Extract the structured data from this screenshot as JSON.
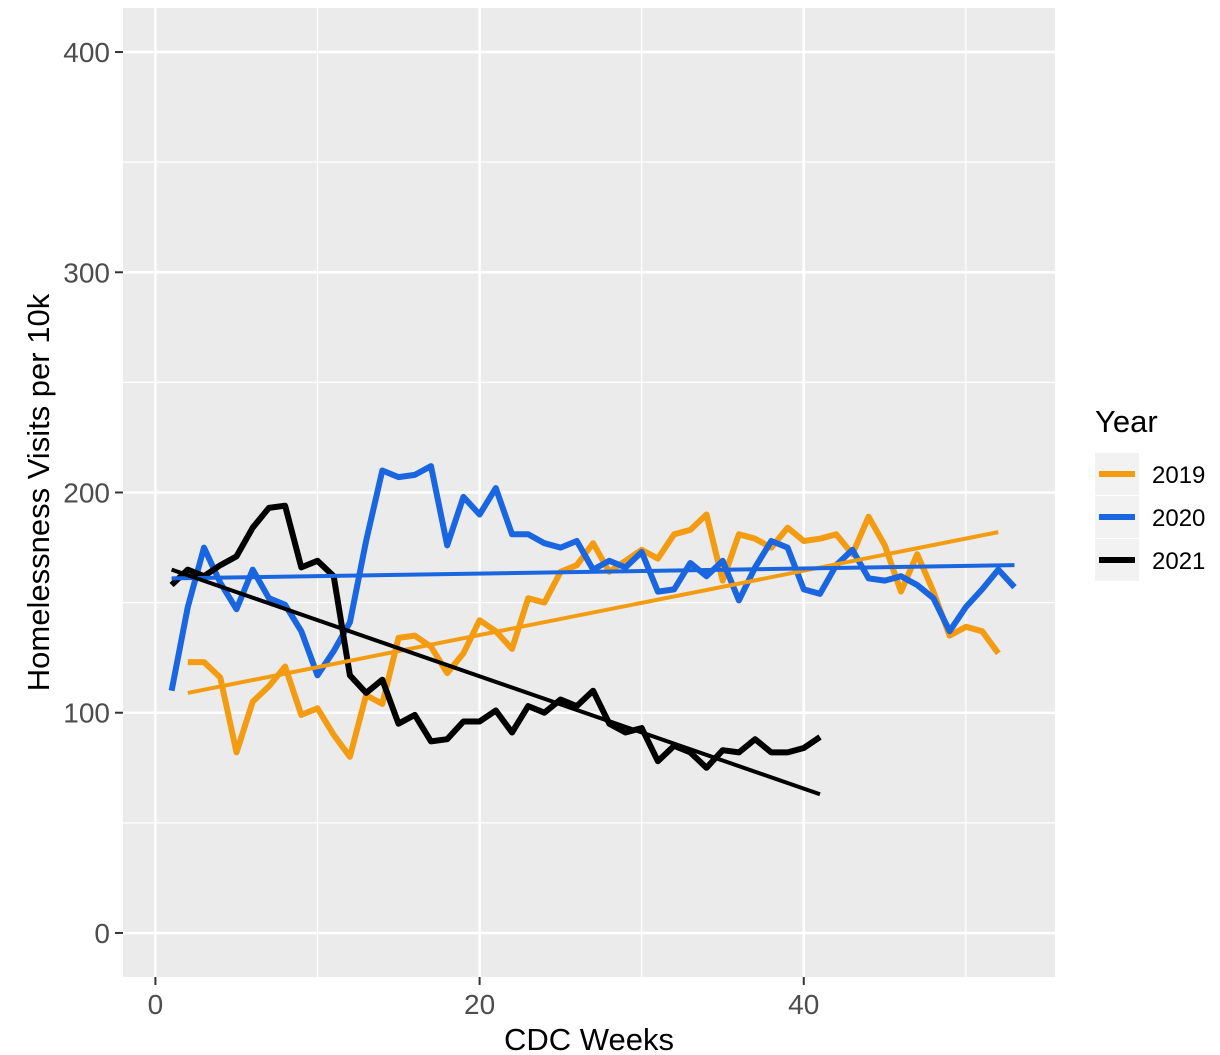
{
  "chart_data": {
    "type": "line",
    "title": "",
    "xlabel": "CDC Weeks",
    "ylabel": "Homelessness Visits per 10k",
    "xlim": [
      -2,
      55.5
    ],
    "ylim": [
      -20,
      420
    ],
    "x_ticks": [
      0,
      20,
      40
    ],
    "x_minor_ticks": [
      10,
      30,
      50
    ],
    "y_ticks": [
      0,
      100,
      200,
      300,
      400
    ],
    "y_minor_ticks": [
      50,
      150,
      250,
      350
    ],
    "x_tick_labels": [
      "0",
      "20",
      "40"
    ],
    "y_tick_labels": [
      "0",
      "100",
      "200",
      "300",
      "400"
    ],
    "grid": true,
    "legend": {
      "title": "Year",
      "position": "right"
    },
    "series": [
      {
        "name": "2019",
        "color": "#F39C12",
        "x": [
          2,
          3,
          4,
          5,
          6,
          7,
          8,
          9,
          10,
          11,
          12,
          13,
          14,
          15,
          16,
          17,
          18,
          19,
          20,
          21,
          22,
          23,
          24,
          25,
          26,
          27,
          28,
          29,
          30,
          31,
          32,
          33,
          34,
          35,
          36,
          37,
          38,
          39,
          40,
          41,
          42,
          43,
          44,
          45,
          46,
          47,
          48,
          49,
          50,
          51,
          52
        ],
        "values": [
          123,
          123,
          116,
          82,
          105,
          112,
          121,
          99,
          102,
          90,
          80,
          108,
          104,
          134,
          135,
          130,
          118,
          127,
          142,
          137,
          129,
          152,
          150,
          164,
          167,
          177,
          164,
          169,
          174,
          170,
          181,
          183,
          190,
          160,
          181,
          179,
          175,
          184,
          178,
          179,
          181,
          172,
          189,
          176,
          155,
          172,
          155,
          135,
          139,
          137,
          127
        ],
        "trend": {
          "x": [
            2,
            52
          ],
          "values": [
            109,
            182
          ]
        }
      },
      {
        "name": "2020",
        "color": "#1A66E0",
        "x": [
          1,
          2,
          3,
          4,
          5,
          6,
          7,
          8,
          9,
          10,
          11,
          12,
          13,
          14,
          15,
          16,
          17,
          18,
          19,
          20,
          21,
          22,
          23,
          24,
          25,
          26,
          27,
          28,
          29,
          30,
          31,
          32,
          33,
          34,
          35,
          36,
          37,
          38,
          39,
          40,
          41,
          42,
          43,
          44,
          45,
          46,
          47,
          48,
          49,
          50,
          51,
          52,
          53
        ],
        "values": [
          110,
          148,
          175,
          159,
          147,
          165,
          152,
          149,
          137,
          117,
          128,
          141,
          178,
          210,
          207,
          208,
          212,
          176,
          198,
          190,
          202,
          181,
          181,
          177,
          175,
          178,
          165,
          169,
          166,
          173,
          155,
          156,
          168,
          162,
          169,
          151,
          166,
          178,
          175,
          156,
          154,
          167,
          174,
          161,
          160,
          162,
          158,
          152,
          137,
          148,
          156,
          165,
          157
        ],
        "trend": {
          "x": [
            1,
            53
          ],
          "values": [
            161,
            167
          ]
        }
      },
      {
        "name": "2021",
        "color": "#000000",
        "x": [
          1,
          2,
          3,
          4,
          5,
          6,
          7,
          8,
          9,
          10,
          11,
          12,
          13,
          14,
          15,
          16,
          17,
          18,
          19,
          20,
          21,
          22,
          23,
          24,
          25,
          26,
          27,
          28,
          29,
          30,
          31,
          32,
          33,
          34,
          35,
          36,
          37,
          38,
          39,
          40,
          41
        ],
        "values": [
          158,
          165,
          162,
          167,
          171,
          184,
          193,
          194,
          166,
          169,
          162,
          117,
          109,
          115,
          95,
          99,
          87,
          88,
          96,
          96,
          101,
          91,
          103,
          100,
          106,
          103,
          110,
          95,
          91,
          93,
          78,
          85,
          82,
          75,
          83,
          82,
          88,
          82,
          82,
          84,
          89
        ],
        "trend": {
          "x": [
            1,
            41
          ],
          "values": [
            165,
            63
          ]
        }
      }
    ]
  }
}
